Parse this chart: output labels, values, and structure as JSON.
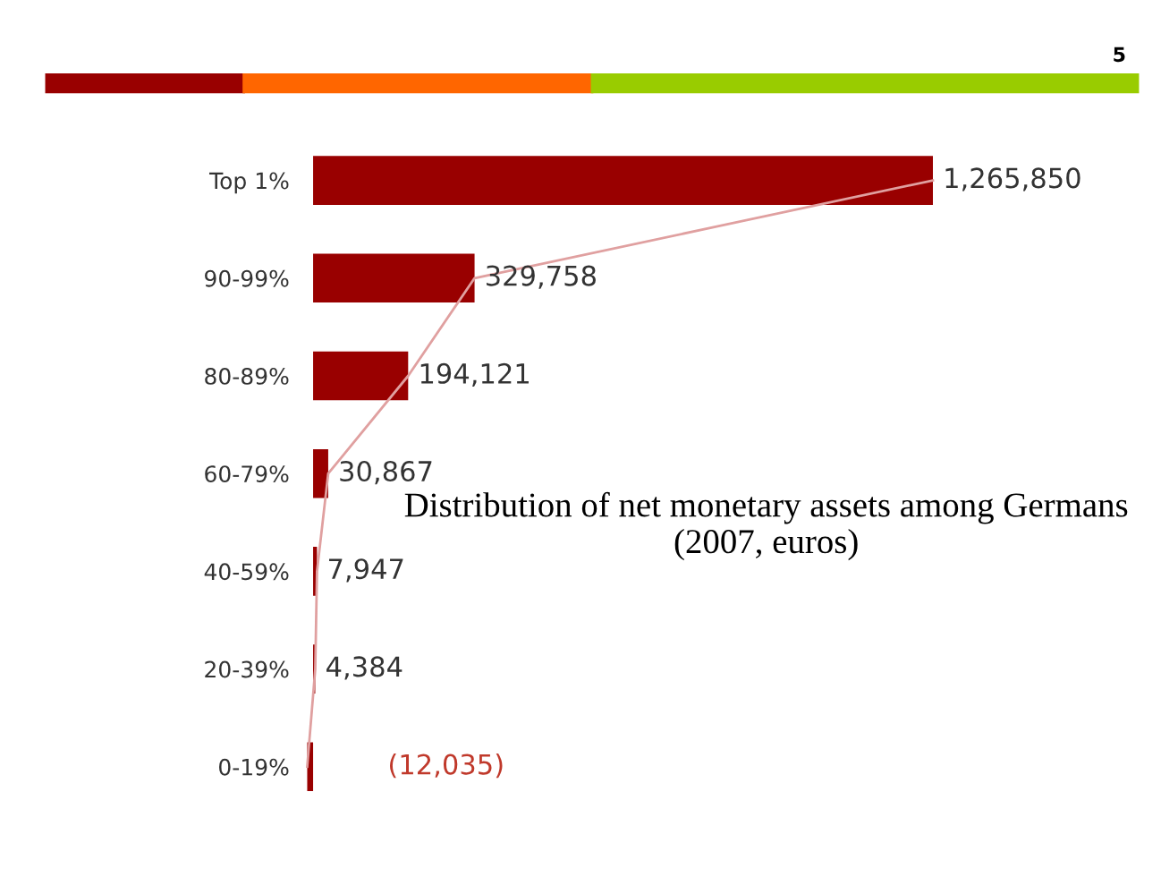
{
  "chart_data": {
    "type": "bar",
    "orientation": "horizontal",
    "title": "Distribution of net monetary assets among Germans (2007, euros)",
    "categories": [
      "Top 1%",
      "90-99%",
      "80-89%",
      "60-79%",
      "40-59%",
      "20-39%",
      "0-19%"
    ],
    "series": [
      {
        "color": "#990000",
        "values": [
          1265850,
          329758,
          194121,
          30867,
          7947,
          4384,
          -12035
        ],
        "value_labels": [
          "1,265,850",
          "329,758",
          "194,121",
          "30,867",
          "7,947",
          "4,384",
          "(12,035)"
        ]
      },
      {
        "type": "line",
        "color": "#e0a0a0",
        "values": [
          1265850,
          329758,
          194121,
          30867,
          7947,
          4384,
          -12035
        ]
      }
    ],
    "annotations": [
      "5"
    ],
    "grid": false,
    "legend": false
  }
}
